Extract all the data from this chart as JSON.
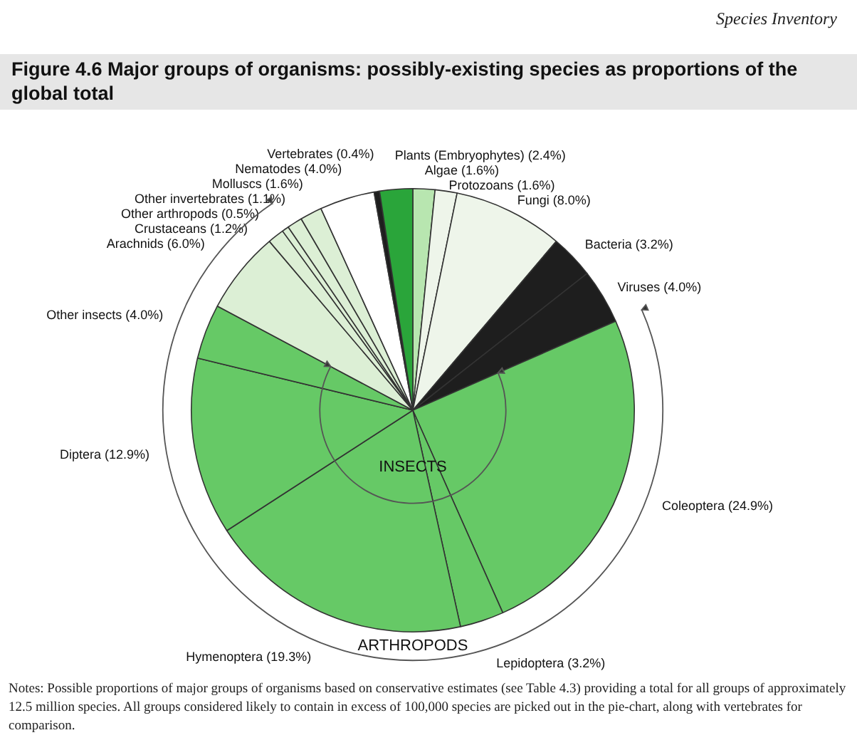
{
  "chart_data": {
    "type": "pie",
    "title": "Figure 4.6 Major groups of organisms: possibly-existing species as proportions of the global total",
    "categories": [
      "Algae (1.6%)",
      "Protozoans (1.6%)",
      "Fungi (8.0%)",
      "Bacteria (3.2%)",
      "Viruses (4.0%)",
      "Coleoptera (24.9%)",
      "Lepidoptera (3.2%)",
      "Hymenoptera (19.3%)",
      "Diptera (12.9%)",
      "Other insects (4.0%)",
      "Arachnids (6.0%)",
      "Crustaceans (1.2%)",
      "Other arthropods (0.5%)",
      "Other invertebrates (1.1%)",
      "Molluscs (1.6%)",
      "Nematodes (4.0%)",
      "Vertebrates (0.4%)",
      "Plants (Embryophytes) (2.4%)"
    ],
    "values": [
      1.6,
      1.6,
      8.0,
      3.2,
      4.0,
      24.9,
      3.2,
      19.3,
      12.9,
      4.0,
      6.0,
      1.2,
      0.5,
      1.1,
      1.6,
      4.0,
      0.4,
      2.4
    ],
    "colors": [
      "#b8e6b0",
      "#eef5ea",
      "#eef5ea",
      "#1e1e1e",
      "#1e1e1e",
      "#66c966",
      "#66c966",
      "#66c966",
      "#66c966",
      "#66c966",
      "#dcefd5",
      "#dcefd5",
      "#dcefd5",
      "#dcefd5",
      "#dcefd5",
      "#ffffff",
      "#1e1e1e",
      "#2aa53a"
    ],
    "annotations": [
      "INSECTS",
      "ARTHROPODS",
      "Notes: Possible proportions of major groups of organisms based on conservative estimates (see Table 4.3) providing a total for all groups of approximately 12.5 million species. All groups considered likely to contain in excess of 100,000 species are picked out in the pie-chart, along with vertebrates for comparison.",
      "Species Inventory"
    ],
    "legend": false
  }
}
